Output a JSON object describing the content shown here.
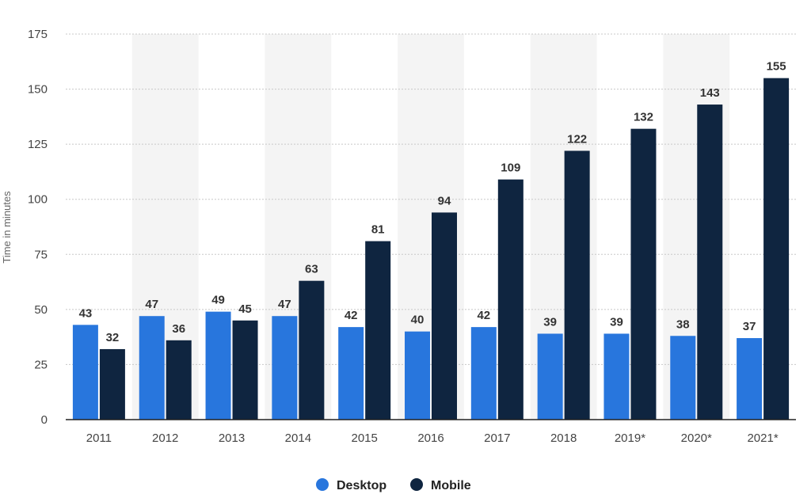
{
  "chart_data": {
    "type": "bar",
    "categories": [
      "2011",
      "2012",
      "2013",
      "2014",
      "2015",
      "2016",
      "2017",
      "2018",
      "2019*",
      "2020*",
      "2021*"
    ],
    "series": [
      {
        "name": "Desktop",
        "values": [
          43,
          47,
          49,
          47,
          42,
          40,
          42,
          39,
          39,
          38,
          37
        ],
        "color": "#2876dd"
      },
      {
        "name": "Mobile",
        "values": [
          32,
          36,
          45,
          63,
          81,
          94,
          109,
          122,
          132,
          143,
          155
        ],
        "color": "#0f2540"
      }
    ],
    "ylabel": "Time in minutes",
    "xlabel": "",
    "title": "",
    "ylim": [
      0,
      175
    ],
    "yticks": [
      0,
      25,
      50,
      75,
      100,
      125,
      150,
      175
    ],
    "grid": true,
    "legend": "bottom-center",
    "band_color": "#f4f4f4"
  }
}
